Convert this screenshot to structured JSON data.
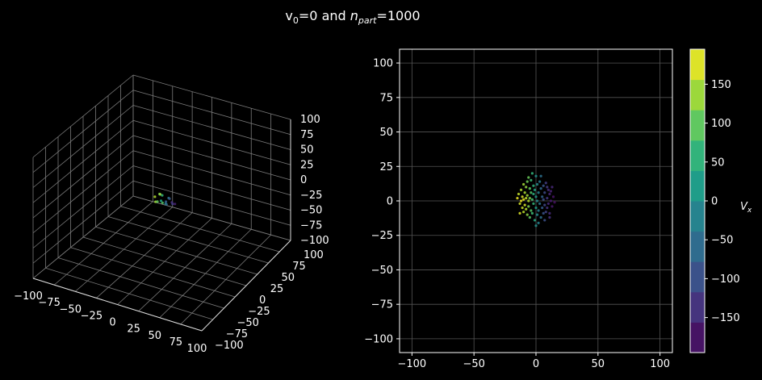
{
  "figure": {
    "title_main": "v",
    "title_sub0": "0",
    "title_mid": "=0 and ",
    "title_n": "n",
    "title_part": "part",
    "title_end": "=1000"
  },
  "chart_data": [
    {
      "type": "scatter",
      "projection": "3d",
      "xlim": [
        -100,
        100
      ],
      "ylim": [
        -100,
        100
      ],
      "zlim": [
        -100,
        100
      ],
      "x_ticks": [
        "−100",
        "−75",
        "−50",
        "−25",
        "0",
        "25",
        "50",
        "75",
        "100"
      ],
      "y_ticks": [
        "−100",
        "−75",
        "−50",
        "−25",
        "0",
        "25",
        "50",
        "75",
        "100"
      ],
      "z_ticks": [
        "−100",
        "−75",
        "−50",
        "−25",
        "0",
        "25",
        "50",
        "75",
        "100"
      ],
      "grid": true,
      "points": [
        [
          -12,
          0,
          2,
          150
        ],
        [
          -10,
          -2,
          -4,
          140
        ],
        [
          -8,
          3,
          6,
          120
        ],
        [
          -6,
          -5,
          0,
          100
        ],
        [
          -5,
          4,
          -8,
          90
        ],
        [
          -3,
          0,
          8,
          60
        ],
        [
          -1,
          -6,
          4,
          30
        ],
        [
          0,
          2,
          -6,
          0
        ],
        [
          2,
          5,
          2,
          -30
        ],
        [
          4,
          -3,
          -2,
          -60
        ],
        [
          6,
          0,
          6,
          -90
        ],
        [
          8,
          3,
          -4,
          -120
        ],
        [
          10,
          -2,
          3,
          -140
        ],
        [
          12,
          1,
          -1,
          -160
        ],
        [
          -9,
          6,
          3,
          130
        ],
        [
          5,
          -6,
          5,
          -80
        ]
      ]
    },
    {
      "type": "scatter",
      "xlim": [
        -110,
        110
      ],
      "ylim": [
        -110,
        110
      ],
      "x_ticks": [
        -100,
        -50,
        0,
        50,
        100
      ],
      "y_ticks": [
        -100,
        -75,
        -50,
        -25,
        0,
        25,
        50,
        75,
        100
      ],
      "grid": true,
      "points": [
        [
          -14,
          5,
          160
        ],
        [
          -13,
          -2,
          170
        ],
        [
          -12,
          8,
          150
        ],
        [
          -12,
          0,
          190
        ],
        [
          -11,
          -5,
          165
        ],
        [
          -11,
          3,
          175
        ],
        [
          -10,
          12,
          140
        ],
        [
          -10,
          -8,
          155
        ],
        [
          -10,
          1,
          185
        ],
        [
          -9,
          6,
          145
        ],
        [
          -9,
          -3,
          170
        ],
        [
          -8,
          10,
          130
        ],
        [
          -8,
          -6,
          150
        ],
        [
          -8,
          2,
          160
        ],
        [
          -7,
          14,
          110
        ],
        [
          -7,
          -10,
          125
        ],
        [
          -7,
          4,
          140
        ],
        [
          -6,
          0,
          150
        ],
        [
          -6,
          -4,
          120
        ],
        [
          -5,
          9,
          100
        ],
        [
          -5,
          -12,
          95
        ],
        [
          -5,
          2,
          115
        ],
        [
          -4,
          6,
          85
        ],
        [
          -4,
          -7,
          90
        ],
        [
          -4,
          15,
          70
        ],
        [
          -3,
          1,
          80
        ],
        [
          -3,
          -9,
          70
        ],
        [
          -2,
          11,
          55
        ],
        [
          -2,
          -2,
          60
        ],
        [
          -2,
          5,
          50
        ],
        [
          -1,
          -14,
          40
        ],
        [
          -1,
          8,
          30
        ],
        [
          0,
          -5,
          20
        ],
        [
          0,
          3,
          10
        ],
        [
          0,
          18,
          5
        ],
        [
          1,
          -10,
          -5
        ],
        [
          1,
          12,
          -10
        ],
        [
          1,
          0,
          -15
        ],
        [
          2,
          6,
          -25
        ],
        [
          2,
          -7,
          -30
        ],
        [
          3,
          14,
          -40
        ],
        [
          3,
          -2,
          -45
        ],
        [
          4,
          9,
          -60
        ],
        [
          4,
          -12,
          -55
        ],
        [
          5,
          3,
          -75
        ],
        [
          5,
          -5,
          -80
        ],
        [
          6,
          11,
          -90
        ],
        [
          6,
          -9,
          -95
        ],
        [
          6,
          1,
          -100
        ],
        [
          7,
          6,
          -110
        ],
        [
          7,
          -3,
          -115
        ],
        [
          8,
          13,
          -125
        ],
        [
          8,
          -8,
          -120
        ],
        [
          9,
          2,
          -135
        ],
        [
          9,
          -5,
          -140
        ],
        [
          10,
          8,
          -145
        ],
        [
          10,
          -2,
          -150
        ],
        [
          11,
          5,
          -155
        ],
        [
          11,
          -9,
          -150
        ],
        [
          12,
          0,
          -165
        ],
        [
          12,
          7,
          -160
        ],
        [
          13,
          -4,
          -170
        ],
        [
          14,
          3,
          -175
        ],
        [
          15,
          -1,
          -180
        ],
        [
          13,
          10,
          -150
        ],
        [
          -13,
          -9,
          175
        ],
        [
          -15,
          2,
          185
        ],
        [
          -6,
          17,
          105
        ],
        [
          2,
          -16,
          -20
        ],
        [
          7,
          -14,
          -100
        ],
        [
          -3,
          20,
          60
        ],
        [
          4,
          18,
          -50
        ],
        [
          0,
          -18,
          0
        ],
        [
          9,
          10,
          -130
        ],
        [
          11,
          -12,
          -140
        ]
      ]
    },
    {
      "type": "colorbar",
      "label": "V",
      "label_sub": "x",
      "range": [
        -195,
        195
      ],
      "ticks": [
        "−150",
        "−100",
        "−50",
        "0",
        "50",
        "100",
        "150"
      ],
      "tick_values": [
        -150,
        -100,
        -50,
        0,
        50,
        100,
        150
      ],
      "levels": 10
    }
  ]
}
